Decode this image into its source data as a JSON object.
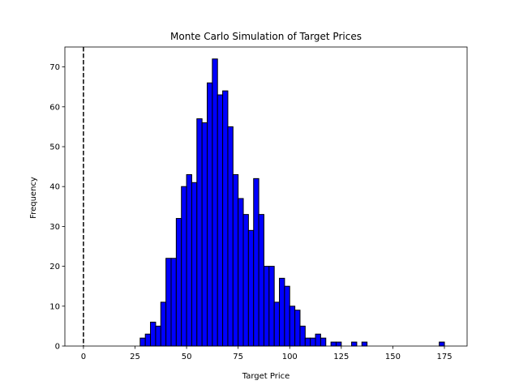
{
  "chart_data": {
    "type": "bar",
    "title": "Monte Carlo Simulation of Target Prices",
    "xlabel": "Target Price",
    "ylabel": "Frequency",
    "xlim": [
      -9,
      186
    ],
    "ylim": [
      0,
      75
    ],
    "x_ticks": [
      0,
      25,
      50,
      75,
      100,
      125,
      150,
      175
    ],
    "y_ticks": [
      0,
      10,
      20,
      30,
      40,
      50,
      60,
      70
    ],
    "grid": false,
    "bar_color": "#0000ff",
    "bar_edge_color": "#000000",
    "reference_line": {
      "x": 0,
      "style": "dashed",
      "color": "#000000"
    },
    "bin_start": 27.5,
    "bin_width": 2.5,
    "values": [
      2,
      3,
      6,
      5,
      11,
      22,
      22,
      32,
      40,
      43,
      41,
      57,
      56,
      66,
      72,
      63,
      64,
      55,
      43,
      37,
      33,
      29,
      42,
      33,
      20,
      20,
      11,
      17,
      15,
      10,
      9,
      5,
      2,
      2,
      3,
      2,
      0,
      1,
      1,
      0,
      0,
      1,
      0,
      1,
      0,
      0,
      0,
      0,
      0,
      0,
      0,
      0,
      0,
      0,
      0,
      0,
      0,
      0,
      1
    ]
  }
}
